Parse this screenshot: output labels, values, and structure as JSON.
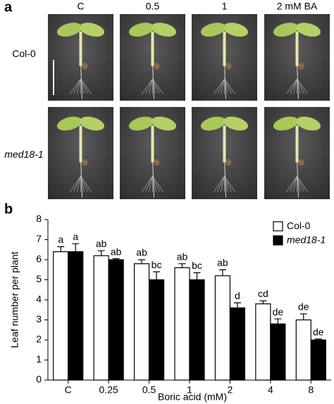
{
  "panel_a": {
    "panel_label": "a",
    "columns": [
      "C",
      "0.5",
      "1",
      "2 mM BA"
    ],
    "rows": [
      "Col-0",
      "med18-1"
    ]
  },
  "chart_data": {
    "type": "bar",
    "panel_label": "b",
    "x_label": "Boric acid (mM)",
    "y_label": "Leaf number per plant",
    "categories": [
      "C",
      "0.25",
      "0.5",
      "1",
      "2",
      "4",
      "8"
    ],
    "series": [
      {
        "name": "Col-0",
        "color": "#ffffff",
        "values": [
          6.4,
          6.2,
          5.8,
          5.6,
          5.2,
          3.8,
          3.0
        ],
        "errors": [
          0.25,
          0.25,
          0.2,
          0.2,
          0.3,
          0.15,
          0.3
        ],
        "letters": [
          "a",
          "ab",
          "ab",
          "ab",
          "ab",
          "cd",
          "de"
        ]
      },
      {
        "name": "med18-1",
        "color": "#000000",
        "values": [
          6.4,
          6.0,
          5.0,
          5.0,
          3.6,
          2.8,
          2.0
        ],
        "errors": [
          0.4,
          0.05,
          0.4,
          0.35,
          0.25,
          0.25,
          0.05
        ],
        "letters": [
          "a",
          "ab",
          "bc",
          "bc",
          "d",
          "de",
          "de"
        ]
      }
    ],
    "ylim": [
      0,
      8
    ],
    "yticks": [
      0,
      1,
      2,
      3,
      4,
      5,
      6,
      7,
      8
    ],
    "legend": "upper right",
    "grid": false
  }
}
